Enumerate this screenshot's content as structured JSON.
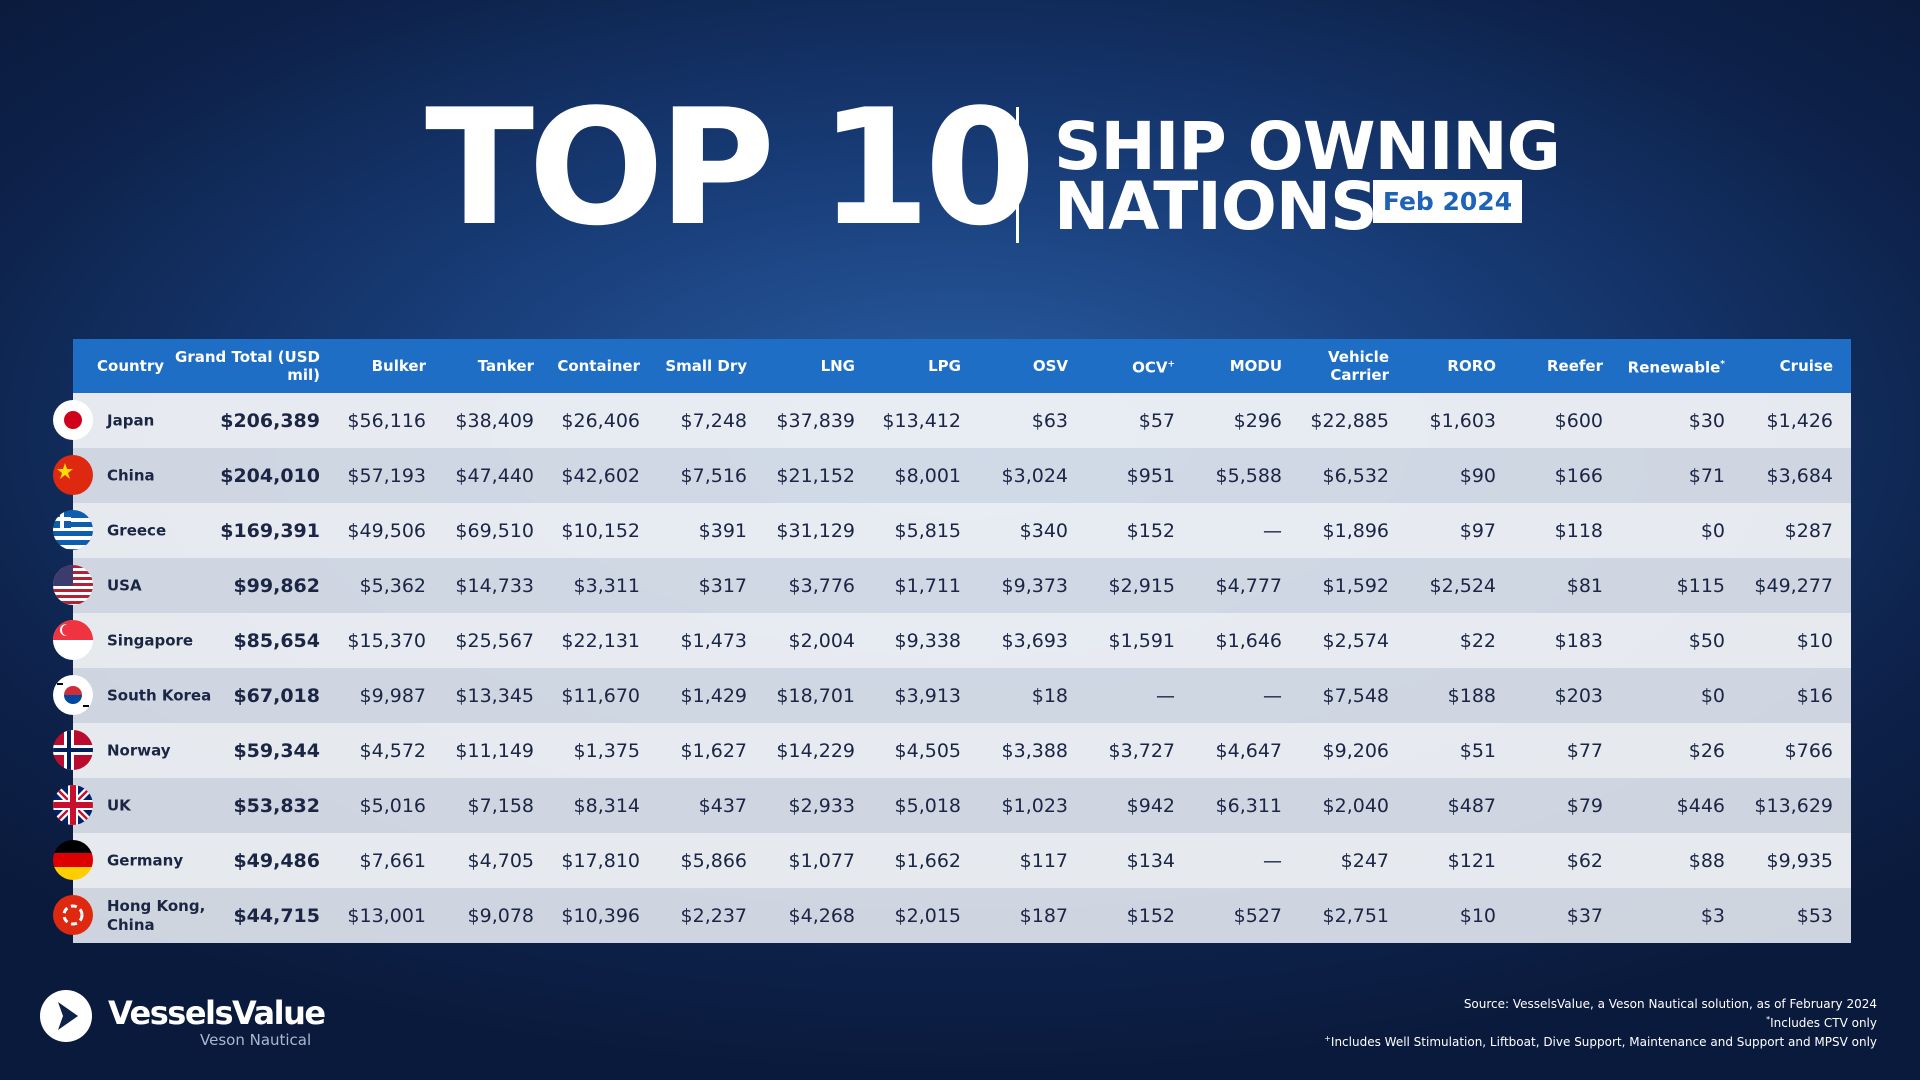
{
  "header": {
    "title": "TOP 10",
    "subtitle_lines": [
      "SHIP OWNING",
      "NATIONS"
    ],
    "badge": "Feb 2024"
  },
  "table": {
    "columns": [
      "Country",
      "Grand Total (USD mil)",
      "Bulker",
      "Tanker",
      "Container",
      "Small Dry",
      "LNG",
      "LPG",
      "OSV",
      {
        "label": "OCV",
        "mark": "+"
      },
      "MODU",
      "Vehicle Carrier",
      "RORO",
      "Reefer",
      {
        "label": "Renewable",
        "mark": "*"
      },
      "Cruise"
    ],
    "rows": [
      {
        "country": "Japan",
        "values": [
          "$206,389",
          "$56,116",
          "$38,409",
          "$26,406",
          "$7,248",
          "$37,839",
          "$13,412",
          "$63",
          "$57",
          "$296",
          "$22,885",
          "$1,603",
          "$600",
          "$30",
          "$1,426"
        ]
      },
      {
        "country": "China",
        "values": [
          "$204,010",
          "$57,193",
          "$47,440",
          "$42,602",
          "$7,516",
          "$21,152",
          "$8,001",
          "$3,024",
          "$951",
          "$5,588",
          "$6,532",
          "$90",
          "$166",
          "$71",
          "$3,684"
        ]
      },
      {
        "country": "Greece",
        "values": [
          "$169,391",
          "$49,506",
          "$69,510",
          "$10,152",
          "$391",
          "$31,129",
          "$5,815",
          "$340",
          "$152",
          "—",
          "$1,896",
          "$97",
          "$118",
          "$0",
          "$287"
        ]
      },
      {
        "country": "USA",
        "values": [
          "$99,862",
          "$5,362",
          "$14,733",
          "$3,311",
          "$317",
          "$3,776",
          "$1,711",
          "$9,373",
          "$2,915",
          "$4,777",
          "$1,592",
          "$2,524",
          "$81",
          "$115",
          "$49,277"
        ]
      },
      {
        "country": "Singapore",
        "values": [
          "$85,654",
          "$15,370",
          "$25,567",
          "$22,131",
          "$1,473",
          "$2,004",
          "$9,338",
          "$3,693",
          "$1,591",
          "$1,646",
          "$2,574",
          "$22",
          "$183",
          "$50",
          "$10"
        ]
      },
      {
        "country": "South Korea",
        "values": [
          "$67,018",
          "$9,987",
          "$13,345",
          "$11,670",
          "$1,429",
          "$18,701",
          "$3,913",
          "$18",
          "—",
          "—",
          "$7,548",
          "$188",
          "$203",
          "$0",
          "$16"
        ]
      },
      {
        "country": "Norway",
        "values": [
          "$59,344",
          "$4,572",
          "$11,149",
          "$1,375",
          "$1,627",
          "$14,229",
          "$4,505",
          "$3,388",
          "$3,727",
          "$4,647",
          "$9,206",
          "$51",
          "$77",
          "$26",
          "$766"
        ]
      },
      {
        "country": "UK",
        "values": [
          "$53,832",
          "$5,016",
          "$7,158",
          "$8,314",
          "$437",
          "$2,933",
          "$5,018",
          "$1,023",
          "$942",
          "$6,311",
          "$2,040",
          "$487",
          "$79",
          "$446",
          "$13,629"
        ]
      },
      {
        "country": "Germany",
        "values": [
          "$49,486",
          "$7,661",
          "$4,705",
          "$17,810",
          "$5,866",
          "$1,077",
          "$1,662",
          "$117",
          "$134",
          "—",
          "$247",
          "$121",
          "$62",
          "$88",
          "$9,935"
        ]
      },
      {
        "country": "Hong Kong, China",
        "values": [
          "$44,715",
          "$13,001",
          "$9,078",
          "$10,396",
          "$2,237",
          "$4,268",
          "$2,015",
          "$187",
          "$152",
          "$527",
          "$2,751",
          "$10",
          "$37",
          "$3",
          "$53"
        ]
      }
    ]
  },
  "footer": {
    "brand": "VesselsValue",
    "brand_sub": "Veson Nautical",
    "notes": [
      {
        "text": "Source: VesselsValue, a Veson Nautical solution, as of February 2024"
      },
      {
        "mark": "*",
        "text": "Includes CTV only"
      },
      {
        "mark": "+",
        "text": "Includes Well Stimulation, Liftboat, Dive Support, Maintenance and Support and MPSV only"
      }
    ]
  }
}
